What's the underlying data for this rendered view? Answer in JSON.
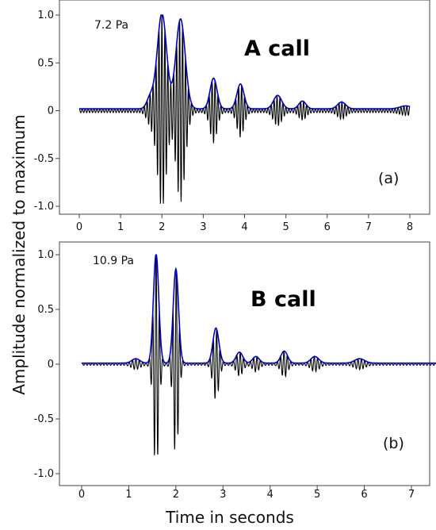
{
  "figure": {
    "ylabel": "Amplitude normalized to maximum",
    "xlabel": "Time in seconds",
    "colors": {
      "waveform": "#000000",
      "envelope": "#0000cc",
      "frame": "#444444"
    }
  },
  "chart_data": [
    {
      "type": "line",
      "title": "A call",
      "panel_label": "(a)",
      "annotation": "7.2 Pa",
      "xlim": [
        0,
        8
      ],
      "ylim": [
        -1.0,
        1.0
      ],
      "x_ticks": [
        0,
        1,
        2,
        3,
        4,
        5,
        6,
        7,
        8
      ],
      "y_ticks": [
        1.0,
        0.5,
        0,
        -0.5,
        -1.0
      ],
      "y_tick_labels": [
        "1.0",
        "0.5",
        "0",
        "-0.5",
        "-1.0"
      ],
      "signal_start": 0.0,
      "signal_end": 8.0,
      "baseline": 0.02,
      "oscillation_hz": 14,
      "series": [
        {
          "role": "waveform",
          "peaks": [
            {
              "t": 2.0,
              "amp": 1.0,
              "width": 0.16
            },
            {
              "t": 2.45,
              "amp": 0.94,
              "width": 0.16
            },
            {
              "t": 1.72,
              "amp": 0.12,
              "width": 0.12
            },
            {
              "t": 3.25,
              "amp": 0.32,
              "width": 0.12
            },
            {
              "t": 3.9,
              "amp": 0.26,
              "width": 0.12
            },
            {
              "t": 4.8,
              "amp": 0.14,
              "width": 0.14
            },
            {
              "t": 5.4,
              "amp": 0.08,
              "width": 0.12
            },
            {
              "t": 6.35,
              "amp": 0.07,
              "width": 0.14
            },
            {
              "t": 7.9,
              "amp": 0.03,
              "width": 0.2
            }
          ]
        },
        {
          "role": "envelope"
        }
      ]
    },
    {
      "type": "line",
      "title": "B call",
      "panel_label": "(b)",
      "annotation": "10.9 Pa",
      "xlim": [
        -0.1,
        7.7
      ],
      "ylim": [
        -1.0,
        1.0
      ],
      "x_ticks": [
        0,
        1,
        2,
        3,
        4,
        5,
        6,
        7
      ],
      "y_ticks": [
        1.0,
        0.5,
        0,
        -0.5,
        -1.0
      ],
      "y_tick_labels": [
        "1.0",
        "0.5",
        "0",
        "-0.5",
        "-1.0"
      ],
      "signal_start": 0.0,
      "signal_end": 7.6,
      "baseline": 0.01,
      "oscillation_hz": 14,
      "series": [
        {
          "role": "waveform",
          "peaks": [
            {
              "t": 1.58,
              "amp": 1.0,
              "width": 0.08
            },
            {
              "t": 2.0,
              "amp": 0.86,
              "width": 0.08
            },
            {
              "t": 1.15,
              "amp": 0.04,
              "width": 0.12
            },
            {
              "t": 2.85,
              "amp": 0.32,
              "width": 0.09
            },
            {
              "t": 3.35,
              "amp": 0.1,
              "width": 0.1
            },
            {
              "t": 3.7,
              "amp": 0.06,
              "width": 0.1
            },
            {
              "t": 4.3,
              "amp": 0.11,
              "width": 0.1
            },
            {
              "t": 4.95,
              "amp": 0.06,
              "width": 0.12
            },
            {
              "t": 5.9,
              "amp": 0.04,
              "width": 0.15
            }
          ]
        },
        {
          "role": "envelope"
        }
      ]
    }
  ]
}
